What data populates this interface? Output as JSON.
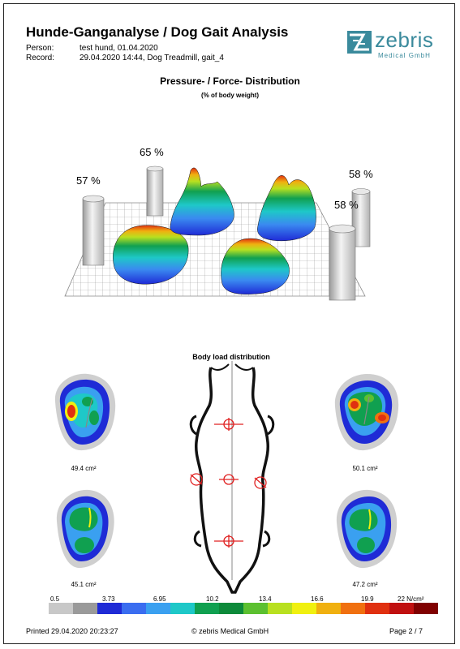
{
  "header": {
    "title": "Hunde-Ganganalyse / Dog Gait Analysis",
    "person_label": "Person:",
    "person_value": "test hund, 01.04.2020",
    "record_label": "Record:",
    "record_value": "29.04.2020 14:44, Dog Treadmill, gait_4"
  },
  "logo": {
    "word": "zebris",
    "sub": "Medical GmbH",
    "color": "#3a8a9c"
  },
  "section": {
    "title": "Pressure- / Force- Distribution",
    "subtitle": "(% of body weight)"
  },
  "weights": {
    "front_left": "57 %",
    "front_right": "65 %",
    "rear_right": "58 %",
    "rear_left": "58 %"
  },
  "body_load": {
    "title": "Body load distribution"
  },
  "footprints": {
    "front_left_area": "49.4 cm²",
    "front_right_area": "50.1 cm²",
    "rear_left_area": "45.1 cm²",
    "rear_right_area": "47.2 cm²"
  },
  "scale": {
    "ticks": [
      "0.5",
      "3.73",
      "6.95",
      "10.2",
      "13.4",
      "16.6",
      "19.9",
      "22 N/cm²"
    ],
    "colors": [
      "#c8c8c8",
      "#9a9a9a",
      "#1f2bd6",
      "#3a6df0",
      "#3aa0f0",
      "#1ec8c8",
      "#10a050",
      "#0d8a3a",
      "#5cc030",
      "#b8e020",
      "#f0f010",
      "#f0b010",
      "#f07010",
      "#e03010",
      "#c01010",
      "#800000"
    ]
  },
  "footer": {
    "printed": "Printed  29.04.2020 20:23:27",
    "copyright": "© zebris Medical GmbH",
    "page": "Page  2 / 7"
  }
}
